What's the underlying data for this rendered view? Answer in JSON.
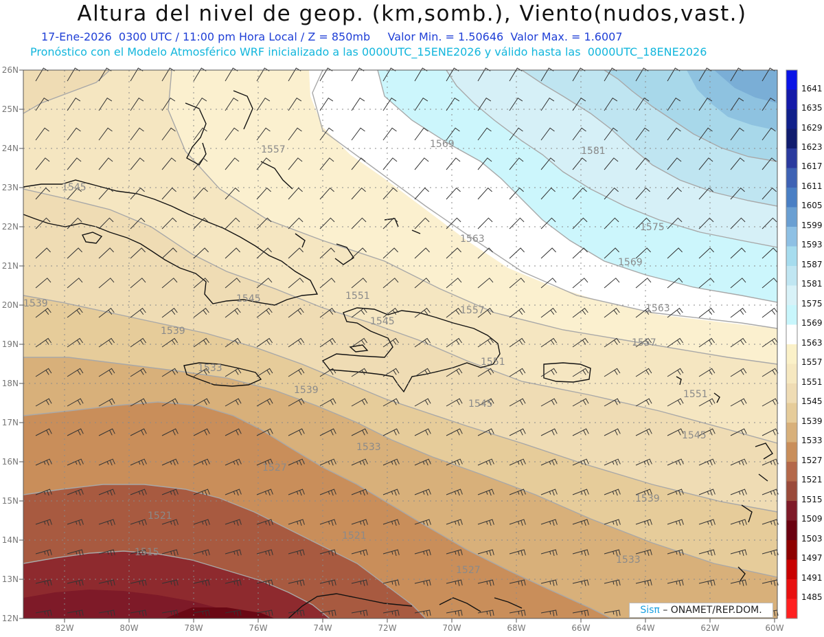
{
  "header": {
    "title": "Altura del nivel de geop. (km,somb.), Viento(nudos,vast.)",
    "subtitle": "17-Ene-2026  0300 UTC / 11:00 pm Hora Local / Z = 850mb     Valor Min. = 1.50646  Valor Max. = 1.6007",
    "model_info": "Pronóstico con el Modelo Atmosférico WRF inicializado a las 0000UTC_15ENE2026 y válido hasta las  0000UTC_18ENE2026"
  },
  "map": {
    "lon_labels": [
      "82W",
      "80W",
      "78W",
      "76W",
      "74W",
      "72W",
      "70W",
      "68W",
      "66W",
      "64W",
      "62W",
      "60W"
    ],
    "lat_labels": [
      "26N",
      "25N",
      "24N",
      "23N",
      "22N",
      "21N",
      "20N",
      "19N",
      "18N",
      "17N",
      "16N",
      "15N",
      "14N",
      "13N",
      "12N"
    ],
    "contour_labels": [
      "1515",
      "1521",
      "1521",
      "1527",
      "1527",
      "1533",
      "1533",
      "1533",
      "1539",
      "1539",
      "1539",
      "1539",
      "1545",
      "1545",
      "1545",
      "1545",
      "1545",
      "1551",
      "1551",
      "1551",
      "1557",
      "1557",
      "1557",
      "1563",
      "1563",
      "1569",
      "1569",
      "1575",
      "1581"
    ],
    "wind_barbs": "decorative — northeasterly to easterly trade winds, 10–25 kt"
  },
  "colorbar": {
    "levels": [
      "1641",
      "1635",
      "1629",
      "1623",
      "1617",
      "1611",
      "1605",
      "1599",
      "1593",
      "1587",
      "1581",
      "1575",
      "1569",
      "1563",
      "1557",
      "1551",
      "1545",
      "1539",
      "1533",
      "1527",
      "1521",
      "1515",
      "1509",
      "1503",
      "1497",
      "1491",
      "1485"
    ],
    "colors": [
      "#0a14e6",
      "#141aa8",
      "#10208a",
      "#101c6e",
      "#2a3a9e",
      "#3e62b4",
      "#4a7fc4",
      "#6a9fd2",
      "#8ec0e4",
      "#a6dcee",
      "#c0e6f2",
      "#d8f2f8",
      "#c8f6fc",
      "#ffffff",
      "#fbf1c8",
      "#f6e8c0",
      "#efdcb4",
      "#e6cc9a",
      "#d8b07a",
      "#c98e5a",
      "#b4684a",
      "#9a4a3a",
      "#7e1a28",
      "#6a0010",
      "#8e0000",
      "#c80000",
      "#e81010",
      "#ff2020"
    ]
  },
  "credit": {
    "brand": "Sisπ",
    "org": "– ONAMET/REP.DOM."
  }
}
